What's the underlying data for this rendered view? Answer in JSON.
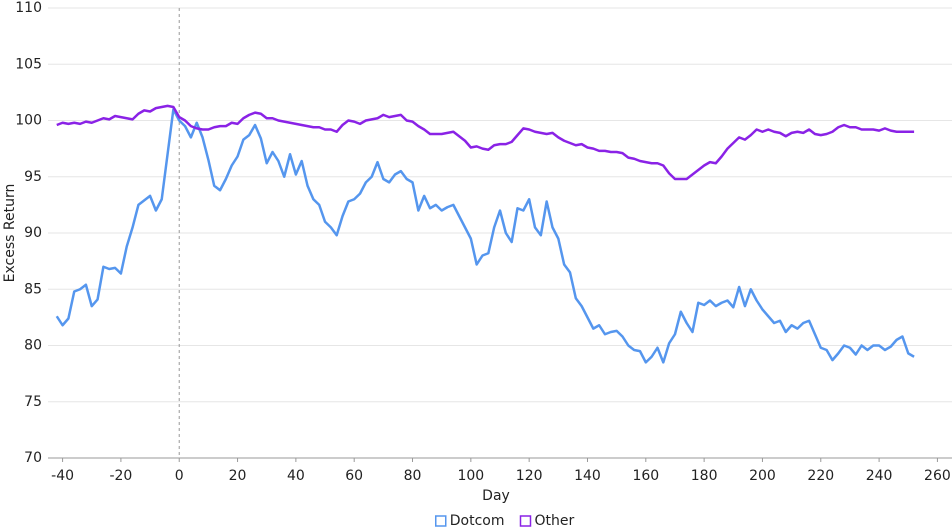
{
  "chart_data": {
    "type": "line",
    "xlabel": "Day",
    "ylabel": "Excess Return",
    "xlim": [
      -45,
      265
    ],
    "ylim": [
      70,
      110
    ],
    "xticks": [
      -40,
      -20,
      0,
      20,
      40,
      60,
      80,
      100,
      120,
      140,
      160,
      180,
      200,
      220,
      240,
      260
    ],
    "yticks": [
      70,
      75,
      80,
      85,
      90,
      95,
      100,
      105,
      110
    ],
    "grid": true,
    "vline": 0,
    "legend": "bottom",
    "x": [
      -42,
      -40,
      -38,
      -36,
      -34,
      -32,
      -30,
      -28,
      -26,
      -24,
      -22,
      -20,
      -18,
      -16,
      -14,
      -12,
      -10,
      -8,
      -6,
      -4,
      -2,
      0,
      2,
      4,
      6,
      8,
      10,
      12,
      14,
      16,
      18,
      20,
      22,
      24,
      26,
      28,
      30,
      32,
      34,
      36,
      38,
      40,
      42,
      44,
      46,
      48,
      50,
      52,
      54,
      56,
      58,
      60,
      62,
      64,
      66,
      68,
      70,
      72,
      74,
      76,
      78,
      80,
      82,
      84,
      86,
      88,
      90,
      92,
      94,
      96,
      98,
      100,
      102,
      104,
      106,
      108,
      110,
      112,
      114,
      116,
      118,
      120,
      122,
      124,
      126,
      128,
      130,
      132,
      134,
      136,
      138,
      140,
      142,
      144,
      146,
      148,
      150,
      152,
      154,
      156,
      158,
      160,
      162,
      164,
      166,
      168,
      170,
      172,
      174,
      176,
      178,
      180,
      182,
      184,
      186,
      188,
      190,
      192,
      194,
      196,
      198,
      200,
      202,
      204,
      206,
      208,
      210,
      212,
      214,
      216,
      218,
      220,
      222,
      224,
      226,
      228,
      230,
      232,
      234,
      236,
      238,
      240,
      242,
      244,
      246,
      248,
      250,
      252
    ],
    "series": [
      {
        "name": "Dotcom",
        "color": "#5596ee",
        "values": [
          82.6,
          81.8,
          82.4,
          84.8,
          85.0,
          85.4,
          83.5,
          84.1,
          87.0,
          86.8,
          86.9,
          86.4,
          88.8,
          90.5,
          92.5,
          92.9,
          93.3,
          92.0,
          93.0,
          97.0,
          101.0,
          100.0,
          99.5,
          98.5,
          99.8,
          98.5,
          96.5,
          94.2,
          93.8,
          94.8,
          96.0,
          96.8,
          98.3,
          98.7,
          99.6,
          98.4,
          96.2,
          97.2,
          96.4,
          95.0,
          97.0,
          95.2,
          96.4,
          94.2,
          93.0,
          92.5,
          91.0,
          90.5,
          89.8,
          91.5,
          92.8,
          93.0,
          93.5,
          94.5,
          95.0,
          96.3,
          94.8,
          94.5,
          95.2,
          95.5,
          94.8,
          94.5,
          92.0,
          93.3,
          92.2,
          92.5,
          92.0,
          92.3,
          92.5,
          91.5,
          90.5,
          89.5,
          87.2,
          88.0,
          88.2,
          90.5,
          92.0,
          90.0,
          89.2,
          92.2,
          92.0,
          93.0,
          90.5,
          89.8,
          92.8,
          90.5,
          89.5,
          87.2,
          86.5,
          84.2,
          83.5,
          82.5,
          81.5,
          81.8,
          81.0,
          81.2,
          81.3,
          80.8,
          80.0,
          79.6,
          79.5,
          78.5,
          79.0,
          79.8,
          78.5,
          80.2,
          81.0,
          83.0,
          82.0,
          81.2,
          83.8,
          83.6,
          84.0,
          83.5,
          83.8,
          84.0,
          83.4,
          85.2,
          83.5,
          85.0,
          84.0,
          83.2,
          82.6,
          82.0,
          82.2,
          81.2,
          81.8,
          81.5,
          82.0,
          82.2,
          81.0,
          79.8,
          79.6,
          78.7,
          79.3,
          80.0,
          79.8,
          79.2,
          80.0,
          79.6,
          80.0,
          80.0,
          79.6,
          79.9,
          80.5,
          80.8,
          79.3,
          79.0
        ]
      },
      {
        "name": "Other",
        "color": "#8a22e6",
        "values": [
          99.6,
          99.8,
          99.7,
          99.8,
          99.7,
          99.9,
          99.8,
          100.0,
          100.2,
          100.1,
          100.4,
          100.3,
          100.2,
          100.1,
          100.6,
          100.9,
          100.8,
          101.1,
          101.2,
          101.3,
          101.2,
          100.3,
          100.0,
          99.5,
          99.3,
          99.2,
          99.2,
          99.4,
          99.5,
          99.5,
          99.8,
          99.7,
          100.2,
          100.5,
          100.7,
          100.6,
          100.2,
          100.2,
          100.0,
          99.9,
          99.8,
          99.7,
          99.6,
          99.5,
          99.4,
          99.4,
          99.2,
          99.2,
          99.0,
          99.6,
          100.0,
          99.9,
          99.7,
          100.0,
          100.1,
          100.2,
          100.5,
          100.3,
          100.4,
          100.5,
          100.0,
          99.9,
          99.5,
          99.2,
          98.8,
          98.8,
          98.8,
          98.9,
          99.0,
          98.6,
          98.2,
          97.6,
          97.7,
          97.5,
          97.4,
          97.8,
          97.9,
          97.9,
          98.1,
          98.7,
          99.3,
          99.2,
          99.0,
          98.9,
          98.8,
          98.9,
          98.5,
          98.2,
          98.0,
          97.8,
          97.9,
          97.6,
          97.5,
          97.3,
          97.3,
          97.2,
          97.2,
          97.1,
          96.7,
          96.6,
          96.4,
          96.3,
          96.2,
          96.2,
          96.0,
          95.3,
          94.8,
          94.8,
          94.8,
          95.2,
          95.6,
          96.0,
          96.3,
          96.2,
          96.8,
          97.5,
          98.0,
          98.5,
          98.3,
          98.7,
          99.2,
          99.0,
          99.2,
          99.0,
          98.9,
          98.6,
          98.9,
          99.0,
          98.9,
          99.2,
          98.8,
          98.7,
          98.8,
          99.0,
          99.4,
          99.6,
          99.4,
          99.4,
          99.2,
          99.2,
          99.2,
          99.1,
          99.3,
          99.1,
          99.0,
          99.0,
          99.0,
          99.0
        ]
      }
    ]
  }
}
